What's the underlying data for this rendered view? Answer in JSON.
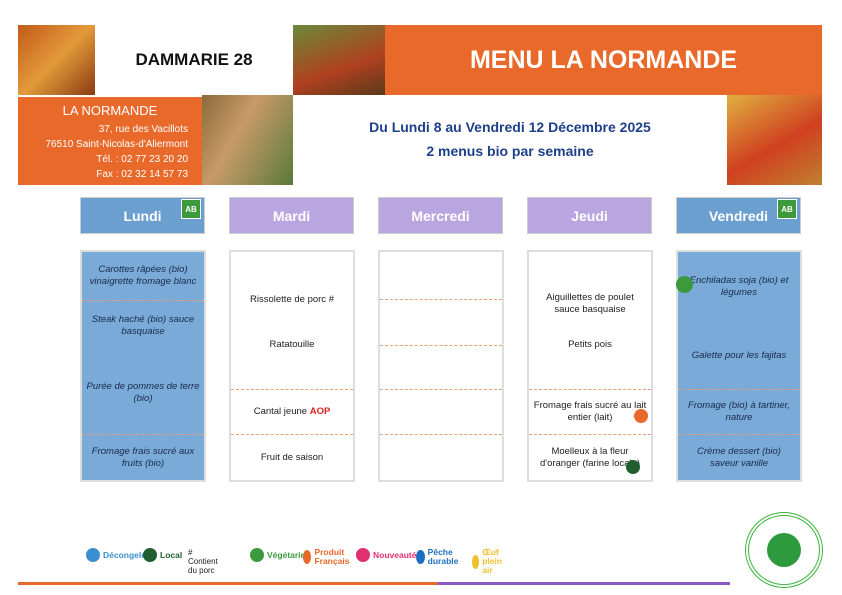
{
  "header": {
    "site": "DAMMARIE  28",
    "title": "MENU LA NORMANDE"
  },
  "kitchen": {
    "name": "LA NORMANDE",
    "street": "37, rue des Vacillots",
    "city": "76510 Saint-Nicolas-d'Aliermont",
    "tel": "Tél. : 02 77 23 20 20",
    "fax": "Fax : 02 32 14 57 73"
  },
  "period": {
    "dates": "Du Lundi 8 au Vendredi 12 Décembre 2025",
    "bio_note": "2 menus bio par semaine"
  },
  "bio_badge": "AB",
  "days": [
    {
      "name": "Lundi",
      "bio": true,
      "style": "blue",
      "items": [
        "Carottes râpées (bio) vinaigrette fromage blanc",
        "Steak haché (bio) sauce basquaise",
        "Purée de pommes de terre (bio)",
        "Fromage frais sucré aux fruits (bio)"
      ]
    },
    {
      "name": "Mardi",
      "style": "purple",
      "items": [
        "Rissolette de porc #",
        "Ratatouille",
        "Cantal jeune",
        "Fruit de saison"
      ],
      "aop": "AOP"
    },
    {
      "name": "Mercredi",
      "style": "purple",
      "items": []
    },
    {
      "name": "Jeudi",
      "style": "purple",
      "items": [
        "Aiguillettes de poulet sauce basquaise",
        "Petits pois",
        "Fromage frais sucré au lait entier (lait)",
        "Moelleux à la fleur d'oranger (farine locale)"
      ]
    },
    {
      "name": "Vendredi",
      "bio": true,
      "style": "blue",
      "items": [
        "Enchiladas soja (bio) et légumes",
        "Galette pour les fajitas",
        "Fromage (bio) à tartiner, nature",
        "Crème dessert (bio) saveur vanille"
      ]
    }
  ],
  "legend": [
    {
      "label": "Décongelé",
      "color": "#3a8fd0",
      "icon": "snowflake-icon"
    },
    {
      "label": "Local",
      "color": "#1f5e2e",
      "icon": "pot-icon"
    },
    {
      "label": "# Contient du porc",
      "color": "",
      "icon": ""
    },
    {
      "label": "Végétarien",
      "color": "#3c9a3c",
      "icon": "leaf-icon"
    },
    {
      "label": "Produit Français",
      "color": "#e8692a",
      "icon": "france-icon"
    },
    {
      "label": "Nouveauté",
      "color": "#e0306e",
      "icon": "new-icon"
    },
    {
      "label": "Pêche durable",
      "color": "#1f6fc0",
      "icon": "fish-icon"
    },
    {
      "label": "Œuf plein air",
      "color": "#f0c030",
      "icon": "egg-icon"
    }
  ],
  "colors": {
    "orange": "#e8692a",
    "blue": "#79aad8",
    "purple": "#b9a6e0",
    "title_blue": "#1e3f8a"
  }
}
